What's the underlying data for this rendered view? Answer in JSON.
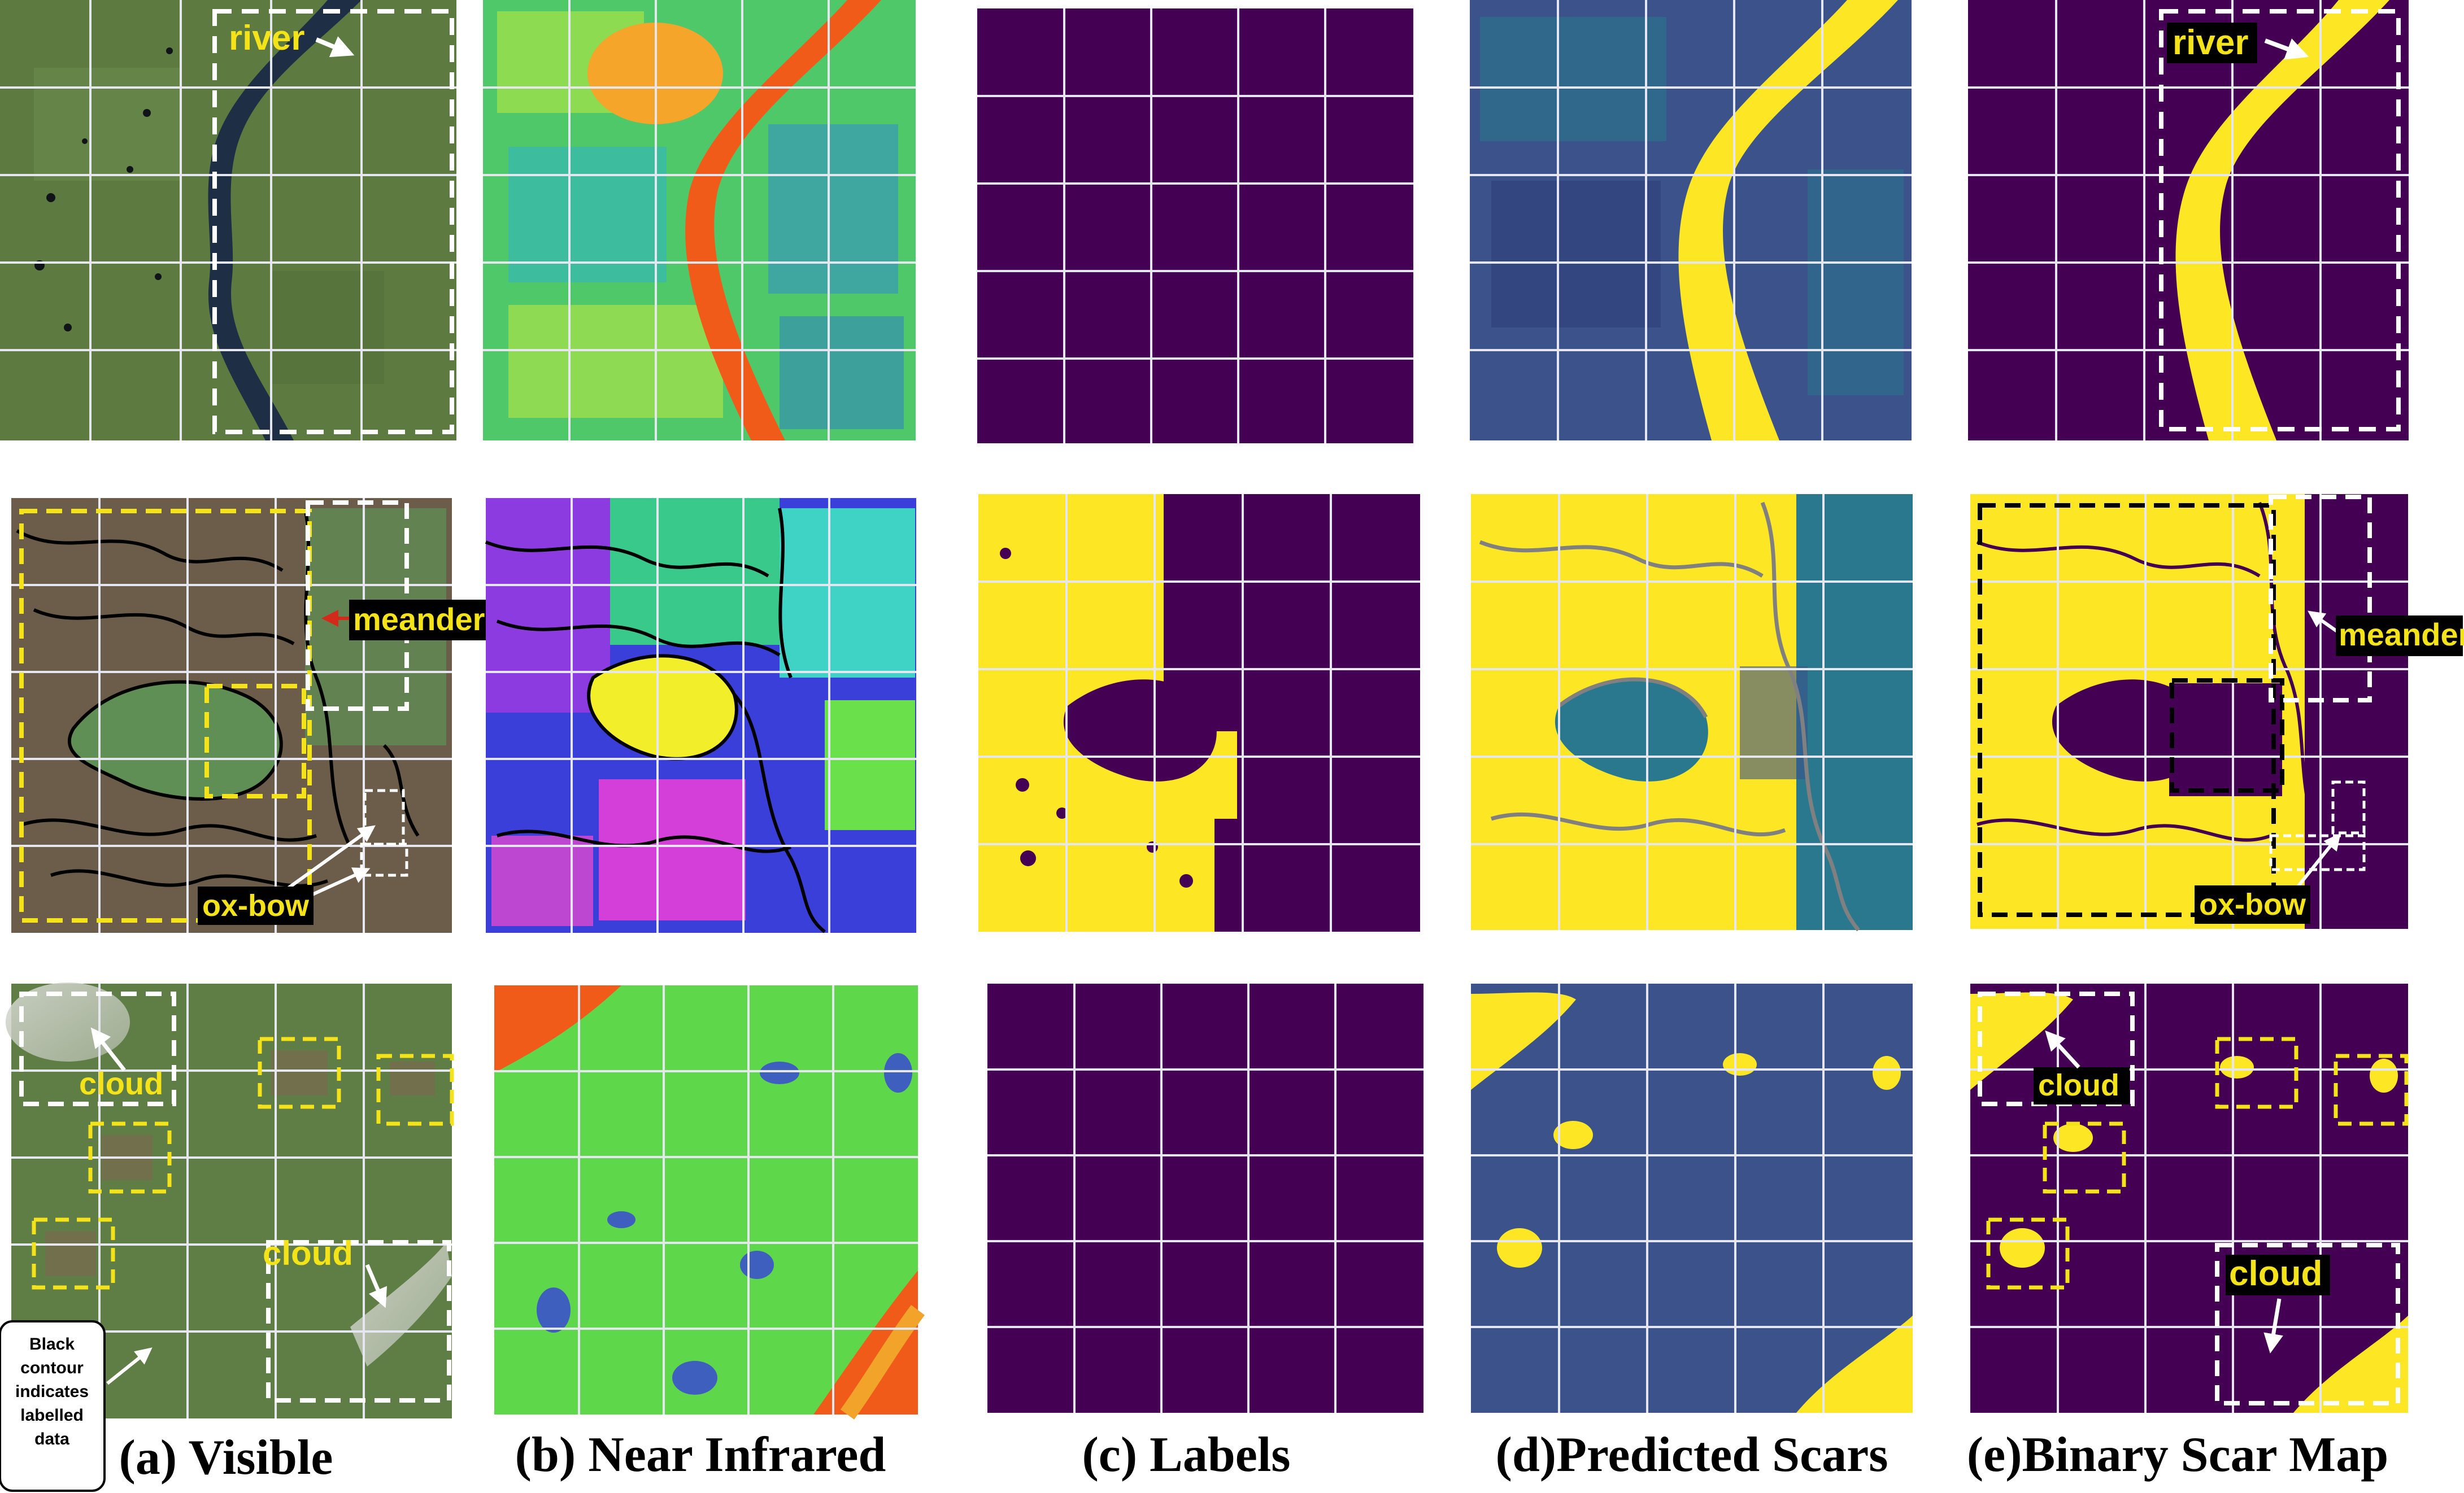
{
  "colors": {
    "viridis_dark": "#440154",
    "viridis_yellow": "#fde725",
    "viridis_teal": "#2a788e",
    "viridis_blue": "#3b528b",
    "grid": "#e6e6f0",
    "annotation_yellow": "#f5e31a",
    "annotation_white": "#ffffff",
    "arrow_red": "#d42a1a",
    "river_dark": "#1e2e44",
    "land_green": "#5e7d43",
    "ir_orange": "#f05b1a"
  },
  "captions": {
    "visible": "(a) Visible",
    "nir": "(b) Near Infrared",
    "labels": "(c) Labels",
    "predicted": "(d)Predicted Scars",
    "binary": "(e)Binary Scar Map"
  },
  "annotations": {
    "river": "river",
    "meander": "meander",
    "oxbow": "ox-bow",
    "cloud": "cloud",
    "legend_note": [
      "Black",
      "contour",
      "indicates",
      "labelled",
      "data"
    ]
  }
}
